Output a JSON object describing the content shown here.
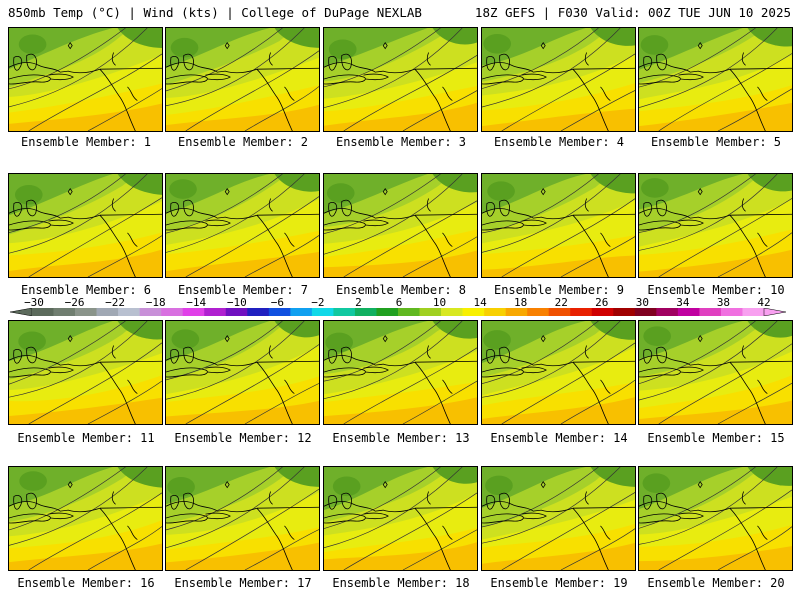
{
  "header": {
    "left": "850mb Temp (°C) | Wind (kts) | College of DuPage NEXLAB",
    "right": "18Z GEFS | F030 Valid: 00Z TUE JUN 10 2025"
  },
  "members": [
    "Ensemble Member: 1",
    "Ensemble Member: 2",
    "Ensemble Member: 3",
    "Ensemble Member: 4",
    "Ensemble Member: 5",
    "Ensemble Member: 6",
    "Ensemble Member: 7",
    "Ensemble Member: 8",
    "Ensemble Member: 9",
    "Ensemble Member: 10",
    "Ensemble Member: 11",
    "Ensemble Member: 12",
    "Ensemble Member: 13",
    "Ensemble Member: 14",
    "Ensemble Member: 15",
    "Ensemble Member: 16",
    "Ensemble Member: 17",
    "Ensemble Member: 18",
    "Ensemble Member: 19",
    "Ensemble Member: 20"
  ],
  "colorbar": {
    "ticks": [
      "−30",
      "−26",
      "−22",
      "−18",
      "−14",
      "−10",
      "−6",
      "−2",
      "2",
      "6",
      "10",
      "14",
      "18",
      "22",
      "26",
      "30",
      "34",
      "38",
      "42"
    ],
    "colors": [
      "#5c6b5c",
      "#707e70",
      "#8a948a",
      "#a0a8b4",
      "#b8c0d0",
      "#c890d8",
      "#d870e0",
      "#e040e8",
      "#b020d0",
      "#7010c0",
      "#2020c0",
      "#1050e0",
      "#10a0f0",
      "#10d8e8",
      "#10c8a0",
      "#10b060",
      "#20a020",
      "#60b820",
      "#a0d020",
      "#d8e820",
      "#f8f000",
      "#f8d000",
      "#f8a800",
      "#f88000",
      "#f05000",
      "#e82000",
      "#d00000",
      "#a00000",
      "#800020",
      "#a00060",
      "#c000a0",
      "#e040c0",
      "#f070e0",
      "#f8a0f0"
    ]
  }
}
